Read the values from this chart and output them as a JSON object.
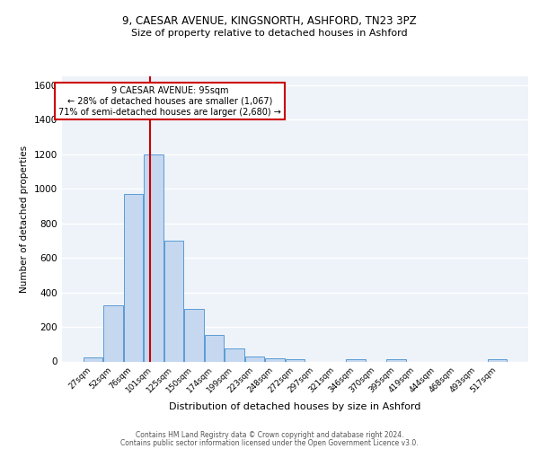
{
  "title1": "9, CAESAR AVENUE, KINGSNORTH, ASHFORD, TN23 3PZ",
  "title2": "Size of property relative to detached houses in Ashford",
  "xlabel": "Distribution of detached houses by size in Ashford",
  "ylabel": "Number of detached properties",
  "footer1": "Contains HM Land Registry data © Crown copyright and database right 2024.",
  "footer2": "Contains public sector information licensed under the Open Government Licence v3.0.",
  "bar_labels": [
    "27sqm",
    "52sqm",
    "76sqm",
    "101sqm",
    "125sqm",
    "150sqm",
    "174sqm",
    "199sqm",
    "223sqm",
    "248sqm",
    "272sqm",
    "297sqm",
    "321sqm",
    "346sqm",
    "370sqm",
    "395sqm",
    "419sqm",
    "444sqm",
    "468sqm",
    "493sqm",
    "517sqm"
  ],
  "bar_values": [
    25,
    325,
    970,
    1200,
    700,
    305,
    155,
    75,
    30,
    20,
    12,
    0,
    0,
    12,
    0,
    15,
    0,
    0,
    0,
    0,
    12
  ],
  "bar_color": "#c5d8f0",
  "bar_edge_color": "#5b9bd5",
  "background_color": "#eef3fa",
  "grid_color": "#ffffff",
  "vline_color": "#cc0000",
  "annotation_text": "9 CAESAR AVENUE: 95sqm\n← 28% of detached houses are smaller (1,067)\n71% of semi-detached houses are larger (2,680) →",
  "annotation_box_color": "#ffffff",
  "annotation_box_edge": "#cc0000",
  "ylim": [
    0,
    1650
  ],
  "yticks": [
    0,
    200,
    400,
    600,
    800,
    1000,
    1200,
    1400,
    1600
  ],
  "vline_pos": 2.85
}
